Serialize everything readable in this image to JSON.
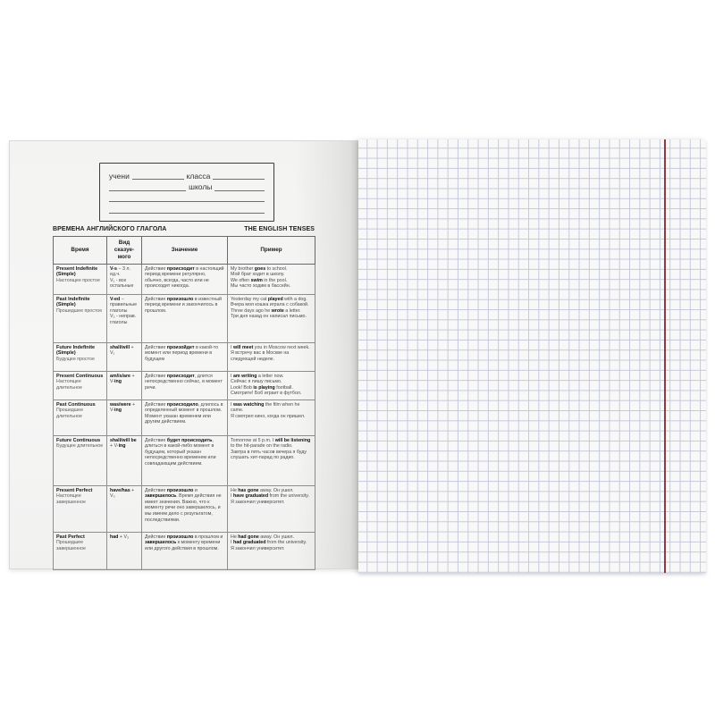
{
  "ownership_box": {
    "student_label": "учени",
    "class_label": "класса",
    "school_label": "школы"
  },
  "table": {
    "title_ru": "ВРЕМЕНА АНГЛИЙСКОГО ГЛАГОЛА",
    "title_en": "THE ENGLISH TENSES",
    "headers": [
      "Время",
      "Вид сказуе-мого",
      "Значение",
      "Пример"
    ],
    "rows": [
      {
        "tense_en": "Present Indefinite (Simple)",
        "tense_ru": "Настоящее простое",
        "form": "**V-s** − 3 л. ед.ч.\nV₁ - все остальные",
        "meaning": "Действие **происходит** в настоящий период времени регулярно, обычно, всегда, часто или не происходит никогда.",
        "example": "My brother **goes** to school.\nМой брат ходит в школу.\nWe often **swim** in the pool.\nМы часто ходим в бассейн."
      },
      {
        "tense_en": "Past Indefinite (Simple)",
        "tense_ru": "Прошедшее простое",
        "form": "**V-ed** − правильные глаголы\nV₂ - неправ. глаголы",
        "meaning": "Действие **произошло** в известный период времени и закончилось в прошлом.",
        "example": "Yesterday my cat **played** with a dog.\nВчера моя кошка играла с собакой.\nThree days ago he **wrote** a letter.\nТри дня назад он написал письмо."
      },
      {
        "tense_en": "Future Indefinite (Simple)",
        "tense_ru": "Будущее простое",
        "form": "**shall/will** + V₁",
        "meaning": "Действие **произойдет** в какой-то момент или период времени в будущем",
        "example": "I **will meet** you in Moscow next week.\nЯ встречу вас в Москве на следующей неделе."
      },
      {
        "tense_en": "Present Continuous",
        "tense_ru": "Настоящее длительное",
        "form": "**am/is/are** + V-**ing**",
        "meaning": "Действие **происходит**, длится непосредственно сейчас, в момент речи.",
        "example": "I **am writing** a letter now.\nСейчас я пишу письмо.\nLook! Bob **is playing** football.\nСмотрите! Боб играет в футбол."
      },
      {
        "tense_en": "Past Continuous",
        "tense_ru": "Прошедшее длительное",
        "form": "**was/were** + V-**ing**",
        "meaning": "Действие **происходило**, длилось в определенный момент в прошлом. Момент указан временем или другим действием.",
        "example": "I **was watching** the film when he came.\nЯ смотрел кино, когда он пришел."
      },
      {
        "tense_en": "Future Continuous",
        "tense_ru": "Будущее длительное",
        "form": "**shall/will be** + V-**ing**",
        "meaning": "Действие **будет происходить**, длиться в какой-либо момент в будущем, который указан непосредственно временем или совпадающим действием.",
        "example": "Tomorrow at 5 p.m. I **will be listening** to the hit-parade on the radio.\nЗавтра в пять часов вечера я буду слушать хит-парад по радио."
      },
      {
        "tense_en": "Present Perfect",
        "tense_ru": "Настоящее завершенное",
        "form": "**have/has** + V₃",
        "meaning": "Действие **произошло** и **завершилось**. Время действия не имеет значения. Важно, что к моменту речи оно завершилось, и мы имеем дело с результатом, последствиями.",
        "example": "He **has gone** away. Он ушел.\nI **have graduated** from the university.\nЯ закончил университет."
      },
      {
        "tense_en": "Past Perfect",
        "tense_ru": "Прошедшее завершенное",
        "form": "**had** + V₃",
        "meaning": "Действие **произошло** в прошлом и **завершилось** к моменту времени или другого действия в прошлом.",
        "example": "He **had gone** away. Он ушел.\nI **had graduated** from the university.\nЯ закончил университет."
      }
    ]
  },
  "right_page": {
    "grid_line_color": "#c6c9db",
    "margin_line_color": "#8e3b3d",
    "paper_color": "#f8f8f9"
  }
}
